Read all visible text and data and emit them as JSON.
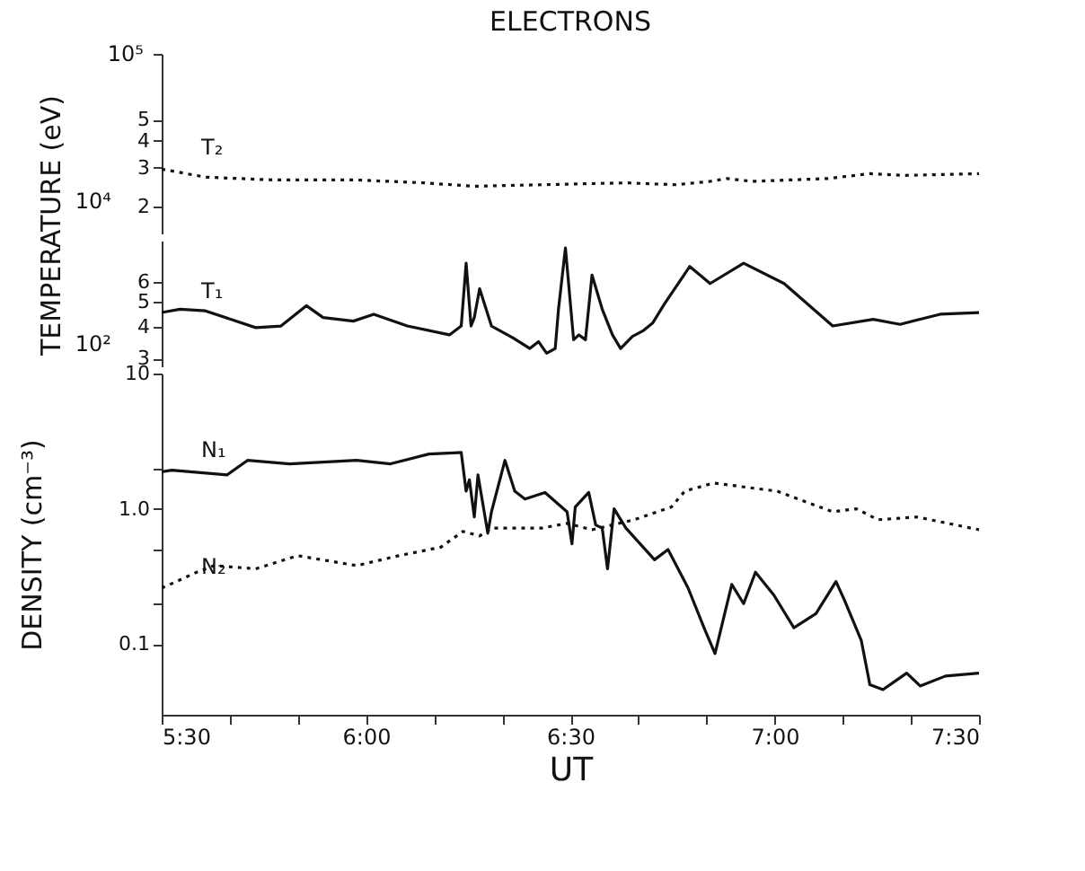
{
  "chart_data": [
    {
      "type": "line",
      "title": "ELECTRONS",
      "ylabel": "TEMPERATURE (eV)",
      "log": true,
      "xlim": [
        5.5,
        7.5
      ],
      "ylim": [
        1.5,
        10
      ],
      "tick_labels": "y",
      "yticks": [
        2,
        3,
        4,
        5,
        {
          "value": 10,
          "label": null
        }
      ],
      "annotations": [
        "10⁴",
        "10⁵"
      ],
      "series": [
        {
          "name": "T₂",
          "color": "#111111",
          "line_style": "dotted",
          "x": [
            5.5,
            5.607,
            5.772,
            5.977,
            6.142,
            6.265,
            6.43,
            6.636,
            6.759,
            6.842,
            6.883,
            6.944,
            7.13,
            7.233,
            7.315,
            7.5
          ],
          "values": [
            2.96,
            2.72,
            2.64,
            2.64,
            2.56,
            2.47,
            2.51,
            2.56,
            2.51,
            2.6,
            2.68,
            2.6,
            2.68,
            2.82,
            2.77,
            2.82
          ]
        }
      ]
    },
    {
      "type": "line",
      "log": true,
      "xlim": [
        5.5,
        7.5
      ],
      "ylim": [
        2.8,
        8.7
      ],
      "tick_labels": "y",
      "yticks": [
        3,
        4,
        5,
        6
      ],
      "annotations": [
        "10²"
      ],
      "series": [
        {
          "name": "T₁",
          "color": "#111111",
          "line_style": "solid",
          "x": [
            5.5,
            5.545,
            5.607,
            5.73,
            5.792,
            5.854,
            5.895,
            5.969,
            6.019,
            6.101,
            6.204,
            6.233,
            6.245,
            6.257,
            6.265,
            6.278,
            6.307,
            6.36,
            6.401,
            6.422,
            6.442,
            6.463,
            6.471,
            6.488,
            6.508,
            6.521,
            6.537,
            6.553,
            6.578,
            6.603,
            6.623,
            6.652,
            6.677,
            6.702,
            6.73,
            6.792,
            6.842,
            6.924,
            7.023,
            7.142,
            7.241,
            7.307,
            7.405,
            7.5
          ],
          "values": [
            4.55,
            4.69,
            4.62,
            3.97,
            4.03,
            4.84,
            4.35,
            4.21,
            4.48,
            4.03,
            3.72,
            4.03,
            7.1,
            4.03,
            4.35,
            5.64,
            4.03,
            3.62,
            3.29,
            3.5,
            3.15,
            3.29,
            4.69,
            8.15,
            3.56,
            3.72,
            3.56,
            6.38,
            4.69,
            3.72,
            3.29,
            3.67,
            3.85,
            4.15,
            4.91,
            6.89,
            5.91,
            7.1,
            5.91,
            4.03,
            4.28,
            4.09,
            4.48,
            4.55
          ]
        }
      ]
    },
    {
      "type": "line",
      "xlabel": "UT",
      "ylabel": "DENSITY (cm⁻³)",
      "log": true,
      "xlim": [
        5.5,
        7.5
      ],
      "ylim": [
        0.03,
        10
      ],
      "xticks": [
        {
          "value": 5.5,
          "label": "5:30"
        },
        {
          "value": 5.6667,
          "label": null
        },
        {
          "value": 5.8333,
          "label": null
        },
        {
          "value": 6,
          "label": "6:00"
        },
        {
          "value": 6.1667,
          "label": null
        },
        {
          "value": 6.3333,
          "label": null
        },
        {
          "value": 6.5,
          "label": "6:30"
        },
        {
          "value": 6.6667,
          "label": null
        },
        {
          "value": 6.8333,
          "label": null
        },
        {
          "value": 7,
          "label": "7:00"
        },
        {
          "value": 7.1667,
          "label": null
        },
        {
          "value": 7.3333,
          "label": null
        },
        {
          "value": 7.5,
          "label": "7:30"
        }
      ],
      "yticks": [
        {
          "value": 0.1,
          "label": "0.1"
        },
        {
          "value": 0.2,
          "label": null
        },
        {
          "value": 0.5,
          "label": null
        },
        {
          "value": 1,
          "label": "1.0"
        },
        {
          "value": 2,
          "label": null
        },
        10
      ],
      "series": [
        {
          "name": "N₁",
          "color": "#111111",
          "line_style": "solid",
          "x": [
            5.5,
            5.525,
            5.66,
            5.71,
            5.813,
            5.977,
            6.06,
            6.154,
            6.233,
            6.245,
            6.253,
            6.265,
            6.274,
            6.298,
            6.307,
            6.34,
            6.364,
            6.389,
            6.438,
            6.492,
            6.504,
            6.512,
            6.545,
            6.562,
            6.578,
            6.591,
            6.607,
            6.636,
            6.706,
            6.739,
            6.788,
            6.829,
            6.854,
            6.895,
            6.924,
            6.953,
            6.998,
            7.047,
            7.101,
            7.15,
            7.171,
            7.212,
            7.233,
            7.265,
            7.323,
            7.356,
            7.418,
            7.5
          ],
          "values": [
            1.88,
            1.93,
            1.78,
            2.28,
            2.15,
            2.28,
            2.15,
            2.54,
            2.61,
            1.35,
            1.64,
            0.87,
            1.78,
            0.66,
            0.95,
            2.28,
            1.35,
            1.18,
            1.32,
            0.95,
            0.55,
            1.03,
            1.32,
            0.76,
            0.72,
            0.36,
            1.0,
            0.72,
            0.42,
            0.5,
            0.26,
            0.128,
            0.085,
            0.276,
            0.199,
            0.34,
            0.23,
            0.132,
            0.168,
            0.29,
            0.21,
            0.106,
            0.05,
            0.046,
            0.061,
            0.049,
            0.058,
            0.061
          ]
        },
        {
          "name": "N₂",
          "color": "#111111",
          "line_style": "dotted",
          "x": [
            5.5,
            5.525,
            5.586,
            5.628,
            5.73,
            5.833,
            5.977,
            6.08,
            6.183,
            6.237,
            6.278,
            6.307,
            6.43,
            6.492,
            6.553,
            6.656,
            6.747,
            6.78,
            6.85,
            7.006,
            7.142,
            7.2,
            7.253,
            7.348,
            7.5
          ],
          "values": [
            0.26,
            0.28,
            0.34,
            0.38,
            0.36,
            0.45,
            0.38,
            0.45,
            0.52,
            0.68,
            0.63,
            0.72,
            0.72,
            0.78,
            0.7,
            0.83,
            1.03,
            1.35,
            1.55,
            1.35,
            0.95,
            1.0,
            0.83,
            0.87,
            0.7
          ]
        }
      ]
    }
  ]
}
